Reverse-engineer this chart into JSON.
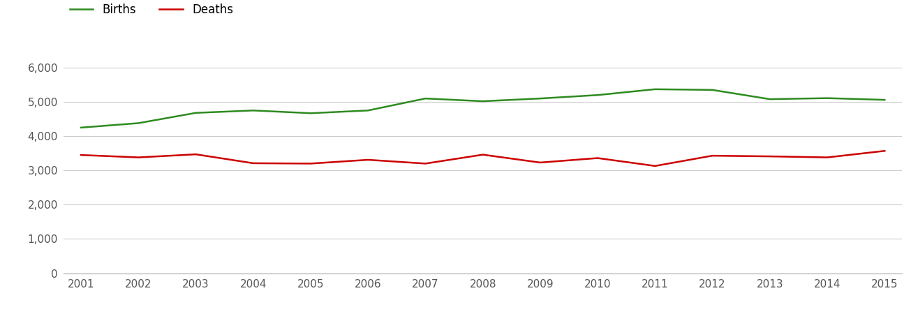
{
  "years": [
    2001,
    2002,
    2003,
    2004,
    2005,
    2006,
    2007,
    2008,
    2009,
    2010,
    2011,
    2012,
    2013,
    2014,
    2015
  ],
  "births": [
    4250,
    4380,
    4680,
    4750,
    4670,
    4750,
    5100,
    5020,
    5100,
    5200,
    5370,
    5350,
    5080,
    5110,
    5060
  ],
  "deaths": [
    3450,
    3380,
    3470,
    3210,
    3200,
    3310,
    3200,
    3460,
    3230,
    3360,
    3130,
    3430,
    3410,
    3380,
    3570
  ],
  "births_color": "#2e8b20",
  "deaths_color": "#cc0000",
  "line_width": 1.8,
  "ylim": [
    0,
    6600
  ],
  "yticks": [
    0,
    1000,
    2000,
    3000,
    4000,
    5000,
    6000
  ],
  "ytick_labels": [
    "0",
    "1,000",
    "2,000",
    "3,000",
    "4,000",
    "5,000",
    "6,000"
  ],
  "background_color": "#ffffff",
  "grid_color": "#cccccc",
  "legend_labels": [
    "Births",
    "Deaths"
  ],
  "figsize": [
    13.05,
    4.5
  ],
  "dpi": 100
}
